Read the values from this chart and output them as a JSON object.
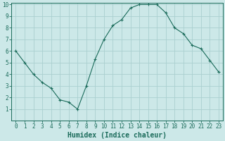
{
  "x": [
    0,
    1,
    2,
    3,
    4,
    5,
    6,
    7,
    8,
    9,
    10,
    11,
    12,
    13,
    14,
    15,
    16,
    17,
    18,
    19,
    20,
    21,
    22,
    23
  ],
  "y": [
    6,
    5,
    4,
    3.3,
    2.8,
    1.8,
    1.6,
    1.0,
    3.0,
    5.3,
    7.0,
    8.2,
    8.7,
    9.7,
    10.0,
    10.0,
    10.0,
    9.3,
    8.0,
    7.5,
    6.5,
    6.2,
    5.2,
    4.2
  ],
  "line_color": "#1a6b5a",
  "marker": "+",
  "marker_size": 3,
  "bg_color": "#cce8e8",
  "grid_color": "#aacfcf",
  "xlabel": "Humidex (Indice chaleur)",
  "ylim": [
    0,
    10
  ],
  "xlim": [
    -0.5,
    23.5
  ],
  "xticks": [
    0,
    1,
    2,
    3,
    4,
    5,
    6,
    7,
    8,
    9,
    10,
    11,
    12,
    13,
    14,
    15,
    16,
    17,
    18,
    19,
    20,
    21,
    22,
    23
  ],
  "yticks": [
    1,
    2,
    3,
    4,
    5,
    6,
    7,
    8,
    9,
    10
  ],
  "tick_color": "#1a6b5a",
  "label_fontsize": 5.5,
  "xlabel_fontsize": 7,
  "xlabel_fontweight": "bold",
  "linewidth": 0.8,
  "markeredgewidth": 0.8
}
